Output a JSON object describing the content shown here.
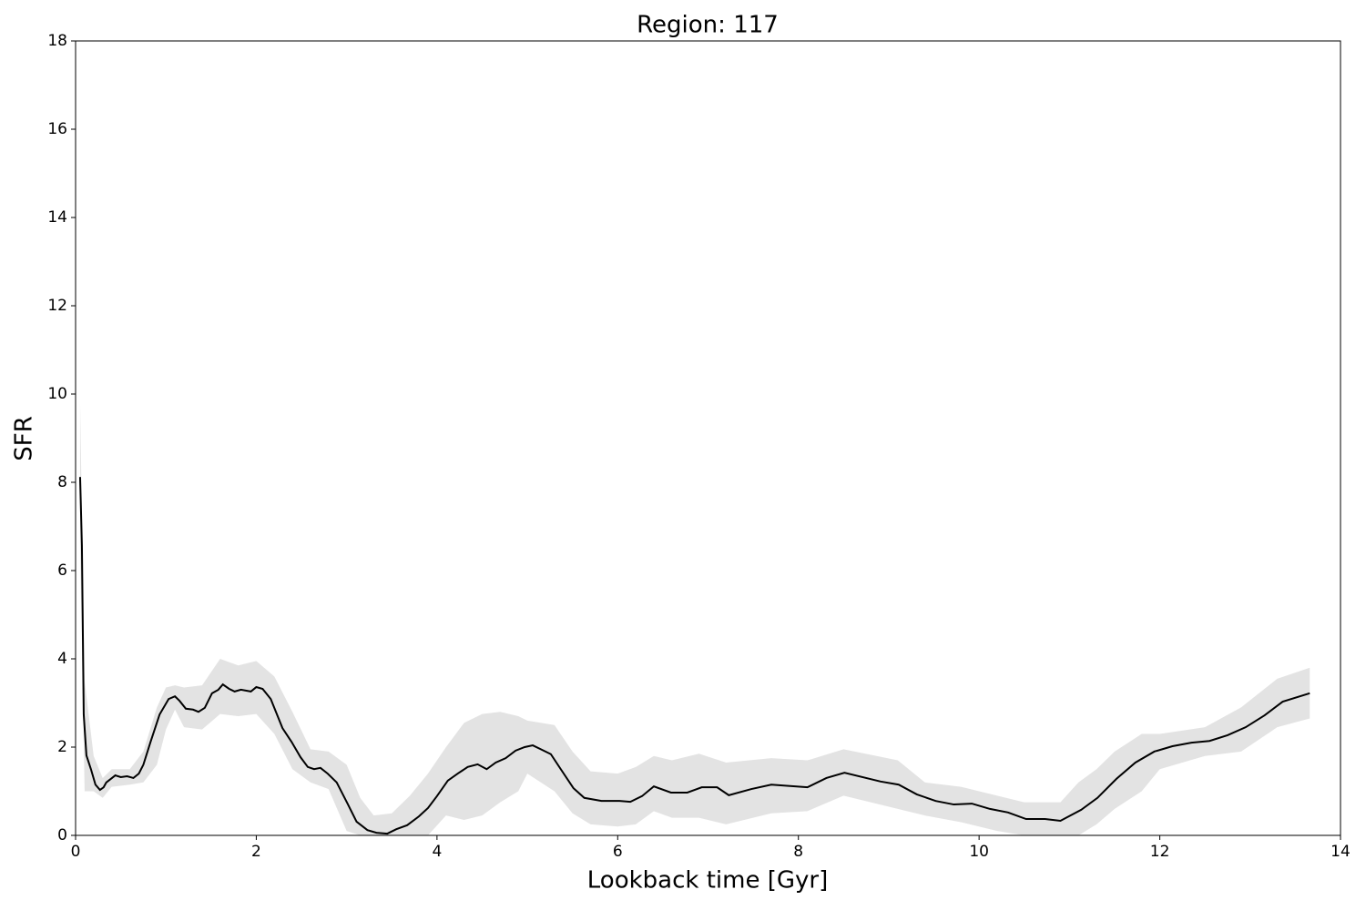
{
  "chart_data": {
    "type": "line",
    "title": "Region: 117",
    "x_label": "Lookback time [Gyr]",
    "y_label": "SFR",
    "x": [
      0.05,
      0.07,
      0.09,
      0.12,
      0.17,
      0.22,
      0.27,
      0.31,
      0.34,
      0.39,
      0.44,
      0.5,
      0.57,
      0.64,
      0.7,
      0.75,
      0.83,
      0.93,
      1.03,
      1.1,
      1.15,
      1.22,
      1.3,
      1.36,
      1.43,
      1.51,
      1.58,
      1.63,
      1.7,
      1.76,
      1.83,
      1.94,
      2.0,
      2.07,
      2.16,
      2.29,
      2.39,
      2.49,
      2.57,
      2.64,
      2.71,
      2.79,
      2.89,
      3.01,
      3.11,
      3.23,
      3.33,
      3.45,
      3.55,
      3.67,
      3.8,
      3.9,
      4.0,
      4.12,
      4.23,
      4.34,
      4.45,
      4.55,
      4.65,
      4.76,
      4.87,
      4.97,
      5.06,
      5.16,
      5.26,
      5.37,
      5.51,
      5.63,
      5.82,
      6.02,
      6.14,
      6.27,
      6.4,
      6.59,
      6.77,
      6.93,
      7.1,
      7.23,
      7.48,
      7.7,
      8.1,
      8.31,
      8.51,
      8.91,
      9.11,
      9.31,
      9.52,
      9.72,
      9.92,
      10.12,
      10.32,
      10.52,
      10.73,
      10.9,
      11.13,
      11.31,
      11.52,
      11.73,
      11.94,
      12.14,
      12.35,
      12.55,
      12.75,
      12.95,
      13.16,
      13.36,
      13.66
    ],
    "values": [
      8.12,
      6.56,
      2.74,
      1.81,
      1.5,
      1.15,
      1.03,
      1.09,
      1.2,
      1.28,
      1.36,
      1.32,
      1.34,
      1.3,
      1.4,
      1.6,
      2.12,
      2.74,
      3.09,
      3.15,
      3.05,
      2.87,
      2.85,
      2.8,
      2.89,
      3.22,
      3.3,
      3.42,
      3.32,
      3.26,
      3.3,
      3.26,
      3.36,
      3.32,
      3.09,
      2.43,
      2.12,
      1.77,
      1.55,
      1.5,
      1.53,
      1.4,
      1.2,
      0.72,
      0.31,
      0.12,
      0.06,
      0.04,
      0.14,
      0.23,
      0.43,
      0.62,
      0.89,
      1.24,
      1.4,
      1.55,
      1.61,
      1.5,
      1.65,
      1.75,
      1.92,
      2.0,
      2.04,
      1.94,
      1.84,
      1.5,
      1.07,
      0.85,
      0.78,
      0.78,
      0.76,
      0.89,
      1.11,
      0.97,
      0.97,
      1.09,
      1.09,
      0.91,
      1.05,
      1.15,
      1.09,
      1.3,
      1.42,
      1.22,
      1.15,
      0.93,
      0.78,
      0.7,
      0.72,
      0.6,
      0.52,
      0.37,
      0.37,
      0.33,
      0.58,
      0.85,
      1.28,
      1.65,
      1.9,
      2.02,
      2.1,
      2.14,
      2.27,
      2.45,
      2.72,
      3.03,
      3.22
    ],
    "color": "#000000",
    "band": {
      "color": "#e3e3e3",
      "x": [
        0.05,
        0.1,
        0.2,
        0.3,
        0.4,
        0.6,
        0.75,
        0.9,
        1.0,
        1.1,
        1.2,
        1.4,
        1.6,
        1.8,
        2.0,
        2.2,
        2.4,
        2.6,
        2.8,
        3.0,
        3.15,
        3.3,
        3.5,
        3.7,
        3.9,
        4.1,
        4.3,
        4.5,
        4.7,
        4.9,
        5.0,
        5.3,
        5.5,
        5.7,
        6.0,
        6.2,
        6.4,
        6.6,
        6.9,
        7.2,
        7.7,
        8.1,
        8.5,
        9.1,
        9.4,
        9.8,
        10.2,
        10.5,
        10.9,
        11.1,
        11.3,
        11.5,
        11.8,
        12.0,
        12.5,
        12.9,
        13.3,
        13.66
      ],
      "upper": [
        9.8,
        3.5,
        1.8,
        1.3,
        1.5,
        1.5,
        1.9,
        2.9,
        3.35,
        3.4,
        3.35,
        3.4,
        4.0,
        3.85,
        3.95,
        3.6,
        2.8,
        1.95,
        1.9,
        1.6,
        0.85,
        0.45,
        0.5,
        0.9,
        1.4,
        2.0,
        2.55,
        2.75,
        2.8,
        2.7,
        2.6,
        2.5,
        1.9,
        1.45,
        1.4,
        1.55,
        1.8,
        1.7,
        1.85,
        1.65,
        1.75,
        1.7,
        1.95,
        1.7,
        1.2,
        1.1,
        0.9,
        0.75,
        0.75,
        1.2,
        1.5,
        1.9,
        2.3,
        2.3,
        2.45,
        2.9,
        3.55,
        3.8
      ],
      "lower": [
        6.5,
        1.0,
        1.0,
        0.85,
        1.1,
        1.15,
        1.2,
        1.6,
        2.4,
        2.85,
        2.45,
        2.4,
        2.75,
        2.7,
        2.75,
        2.3,
        1.5,
        1.2,
        1.05,
        0.1,
        0,
        0,
        0,
        0,
        0,
        0.45,
        0.35,
        0.45,
        0.75,
        1.0,
        1.4,
        1.0,
        0.5,
        0.25,
        0.2,
        0.25,
        0.55,
        0.4,
        0.4,
        0.25,
        0.5,
        0.55,
        0.9,
        0.6,
        0.45,
        0.3,
        0.1,
        0,
        0,
        0,
        0.25,
        0.6,
        1.0,
        1.5,
        1.8,
        1.9,
        2.45,
        2.65
      ]
    },
    "xlim": [
      0,
      14
    ],
    "xticks": [
      0,
      2,
      4,
      6,
      8,
      10,
      12,
      14
    ],
    "ylim": [
      0,
      18
    ],
    "yticks": [
      0,
      2,
      4,
      6,
      8,
      10,
      12,
      14,
      16,
      18
    ]
  }
}
